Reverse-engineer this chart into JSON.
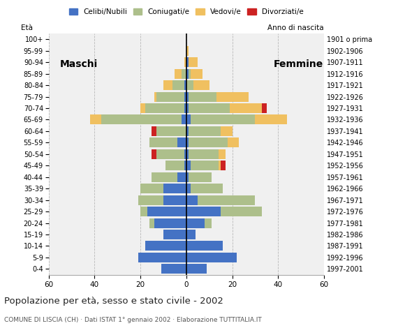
{
  "age_groups": [
    "0-4",
    "5-9",
    "10-14",
    "15-19",
    "20-24",
    "25-29",
    "30-34",
    "35-39",
    "40-44",
    "45-49",
    "50-54",
    "55-59",
    "60-64",
    "65-69",
    "70-74",
    "75-79",
    "80-84",
    "85-89",
    "90-94",
    "95-99",
    "100+"
  ],
  "birth_years": [
    "1997-2001",
    "1992-1996",
    "1987-1991",
    "1982-1986",
    "1977-1981",
    "1972-1976",
    "1967-1971",
    "1962-1966",
    "1957-1961",
    "1952-1956",
    "1947-1951",
    "1942-1946",
    "1937-1941",
    "1932-1936",
    "1927-1931",
    "1922-1926",
    "1917-1921",
    "1912-1916",
    "1907-1911",
    "1902-1906",
    "1901 o prima"
  ],
  "males": {
    "celibe": [
      11,
      21,
      18,
      10,
      14,
      17,
      10,
      10,
      4,
      1,
      1,
      4,
      0,
      2,
      1,
      1,
      1,
      0,
      0,
      0,
      0
    ],
    "coniugato": [
      0,
      0,
      0,
      0,
      2,
      3,
      11,
      10,
      11,
      8,
      12,
      12,
      13,
      35,
      17,
      12,
      5,
      2,
      0,
      0,
      0
    ],
    "vedovo": [
      0,
      0,
      0,
      0,
      0,
      0,
      0,
      0,
      0,
      0,
      0,
      0,
      0,
      5,
      2,
      1,
      4,
      3,
      1,
      0,
      0
    ],
    "divorziato": [
      0,
      0,
      0,
      0,
      0,
      0,
      0,
      0,
      0,
      0,
      2,
      0,
      2,
      0,
      0,
      0,
      0,
      0,
      0,
      0,
      0
    ]
  },
  "females": {
    "nubile": [
      9,
      22,
      16,
      4,
      8,
      15,
      5,
      2,
      1,
      2,
      1,
      1,
      1,
      2,
      1,
      1,
      0,
      1,
      1,
      0,
      0
    ],
    "coniugata": [
      0,
      0,
      0,
      0,
      3,
      18,
      25,
      14,
      10,
      12,
      13,
      17,
      14,
      28,
      18,
      12,
      3,
      1,
      0,
      0,
      0
    ],
    "vedova": [
      0,
      0,
      0,
      0,
      0,
      0,
      0,
      0,
      0,
      1,
      3,
      5,
      5,
      14,
      14,
      14,
      7,
      5,
      4,
      1,
      0
    ],
    "divorziata": [
      0,
      0,
      0,
      0,
      0,
      0,
      0,
      0,
      0,
      2,
      0,
      0,
      0,
      0,
      2,
      0,
      0,
      0,
      0,
      0,
      0
    ]
  },
  "colors": {
    "celibe": "#4472C4",
    "coniugato": "#ADBF8B",
    "vedovo": "#F0C060",
    "divorziato": "#CC2222"
  },
  "xlim": 60,
  "title": "Popolazione per età, sesso e stato civile - 2002",
  "subtitle": "COMUNE DI LISCIA (CH) · Dati ISTAT 1° gennaio 2002 · Elaborazione TUTTITALIA.IT",
  "label_maschi": "Maschi",
  "label_femmine": "Femmine",
  "ylabel_left": "Età",
  "ylabel_right": "Anno di nascita",
  "legend_labels": [
    "Celibi/Nubili",
    "Coniugati/e",
    "Vedovi/e",
    "Divorziati/e"
  ],
  "bg_color": "#ffffff",
  "plot_bg": "#f0f0f0"
}
